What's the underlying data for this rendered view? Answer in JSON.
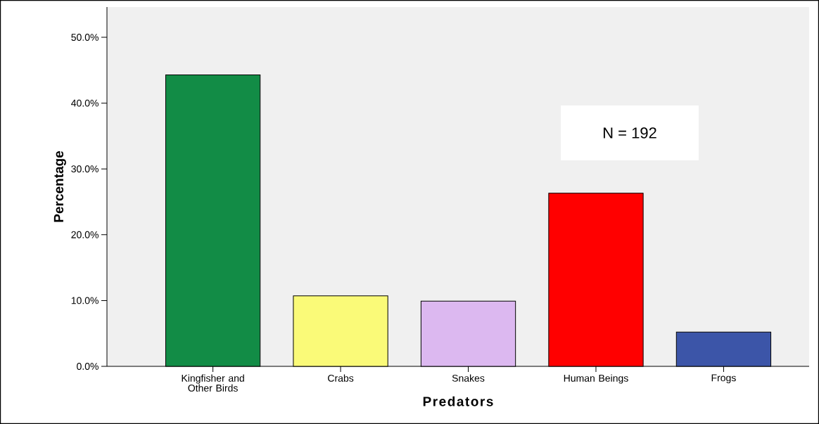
{
  "chart_data": {
    "type": "bar",
    "xlabel": "Predators",
    "ylabel": "Percentage",
    "categories": [
      "Kingfisher and Other Birds",
      "Crabs",
      "Snakes",
      "Human Beings",
      "Frogs"
    ],
    "values": [
      44.3,
      10.7,
      9.9,
      26.3,
      5.2
    ],
    "colors": [
      "#128c46",
      "#fafa78",
      "#dcb8f0",
      "#ff0000",
      "#3c55a8"
    ],
    "ylim": [
      0,
      54.6
    ],
    "yticks": [
      {
        "value": 0,
        "label": "0.0%"
      },
      {
        "value": 10,
        "label": "10.0%"
      },
      {
        "value": 20,
        "label": "20.0%"
      },
      {
        "value": 30,
        "label": "30.0%"
      },
      {
        "value": 40,
        "label": "40.0%"
      },
      {
        "value": 50,
        "label": "50.0%"
      }
    ],
    "annotations": [
      "N = 192"
    ]
  }
}
